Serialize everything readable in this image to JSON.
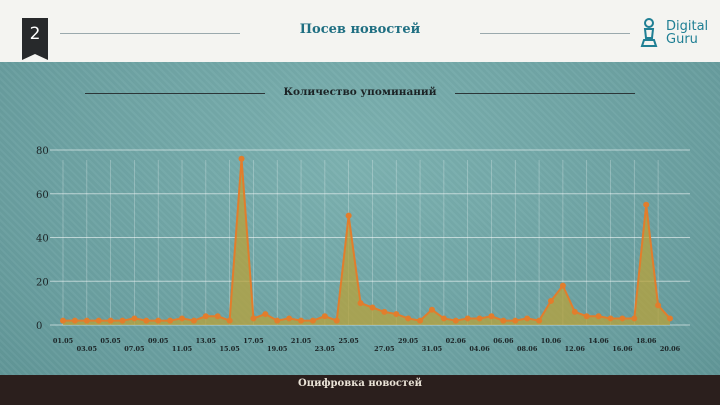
{
  "slide": {
    "number": "2"
  },
  "header": {
    "title": "Посев новостей"
  },
  "logo": {
    "line1": "Digital",
    "line2": "Guru",
    "icon": "chess-pawn-icon"
  },
  "footer": {
    "text": "Оцифровка новостей"
  },
  "colors": {
    "line": "#e27d2c",
    "fill": "#b8a23a",
    "header_title": "#1f6f82",
    "footer_bg": "#2b1f1d"
  },
  "chart_data": {
    "type": "area",
    "title": "Количество упоминаний",
    "xlabel": "",
    "ylabel": "",
    "ylim": [
      0,
      80
    ],
    "yticks": [
      0,
      20,
      40,
      60,
      80
    ],
    "grid": true,
    "x_tick_labels": [
      "01.05",
      "03.05",
      "05.05",
      "07.05",
      "09.05",
      "11.05",
      "13.05",
      "15.05",
      "17.05",
      "19.05",
      "21.05",
      "23.05",
      "25.05",
      "27.05",
      "29.05",
      "31.05",
      "02.06",
      "04.06",
      "06.06",
      "08.06",
      "10.06",
      "12.06",
      "14.06",
      "16.06",
      "18.06",
      "20.06"
    ],
    "series": [
      {
        "values": [
          2,
          2,
          2,
          2,
          2,
          2,
          3,
          2,
          2,
          2,
          3,
          2,
          4,
          4,
          2,
          76,
          3,
          5,
          2,
          3,
          2,
          2,
          4,
          2,
          50,
          10,
          8,
          6,
          5,
          3,
          2,
          7,
          3,
          2,
          3,
          3,
          4,
          2,
          2,
          3,
          2,
          11,
          18,
          6,
          4,
          4,
          3,
          3,
          3,
          55,
          9,
          3
        ]
      }
    ]
  }
}
